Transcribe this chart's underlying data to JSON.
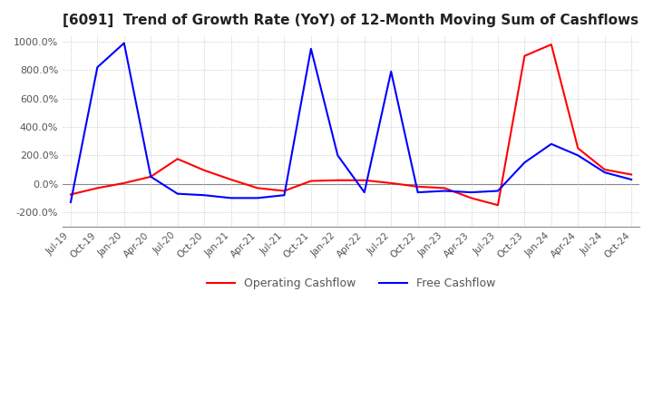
{
  "title": "[6091]  Trend of Growth Rate (YoY) of 12-Month Moving Sum of Cashflows",
  "ylim": [
    -300,
    1050
  ],
  "yticks": [
    -200,
    0,
    200,
    400,
    600,
    800,
    1000
  ],
  "background_color": "#ffffff",
  "grid_color": "#bbbbbb",
  "operating_color": "#ff0000",
  "free_color": "#0000ff",
  "legend_labels": [
    "Operating Cashflow",
    "Free Cashflow"
  ],
  "x_labels": [
    "Jul-19",
    "Oct-19",
    "Jan-20",
    "Apr-20",
    "Jul-20",
    "Oct-20",
    "Jan-21",
    "Apr-21",
    "Jul-21",
    "Oct-21",
    "Jan-22",
    "Apr-22",
    "Jul-22",
    "Oct-22",
    "Jan-23",
    "Apr-23",
    "Jul-23",
    "Oct-23",
    "Jan-24",
    "Apr-24",
    "Jul-24",
    "Oct-24"
  ],
  "operating": [
    -75,
    -30,
    5,
    50,
    175,
    95,
    30,
    -30,
    -50,
    20,
    25,
    25,
    5,
    -20,
    -30,
    -100,
    -150,
    900,
    980,
    250,
    100,
    65
  ],
  "free": [
    -130,
    820,
    990,
    50,
    -70,
    -80,
    -100,
    -100,
    -80,
    950,
    200,
    -60,
    790,
    -60,
    -50,
    -60,
    -50,
    150,
    280,
    200,
    80,
    30
  ]
}
